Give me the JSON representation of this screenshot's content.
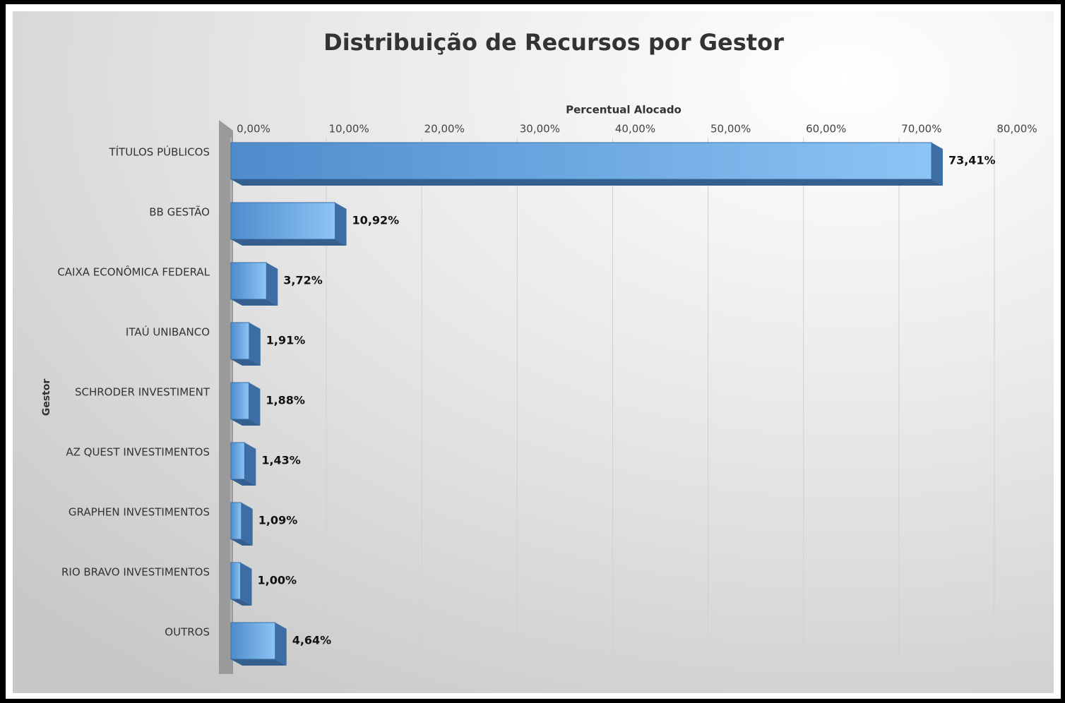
{
  "chart_data": {
    "type": "bar",
    "orientation": "horizontal",
    "title": "Distribuição de Recursos por Gestor",
    "x_label": "Percentual Alocado",
    "y_label": "Gestor",
    "categories": [
      "TÍTULOS PÚBLICOS",
      "BB GESTÃO",
      "CAIXA ECONÔMICA FEDERAL",
      "ITAÚ UNIBANCO",
      "SCHRODER INVESTIMENT",
      "AZ QUEST INVESTIMENTOS",
      "GRAPHEN INVESTIMENTOS",
      "RIO BRAVO INVESTIMENTOS",
      "OUTROS"
    ],
    "values": [
      73.41,
      10.92,
      3.72,
      1.91,
      1.88,
      1.43,
      1.09,
      1.0,
      4.64
    ],
    "value_labels": [
      "73,41%",
      "10,92%",
      "3,72%",
      "1,91%",
      "1,88%",
      "1,43%",
      "1,09%",
      "1,00%",
      "4,64%"
    ],
    "color": "#5b9bd5",
    "xlim": [
      0,
      80
    ],
    "xticks": [
      {
        "value": 0,
        "label": "0,00%"
      },
      {
        "value": 10,
        "label": "10,00%"
      },
      {
        "value": 20,
        "label": "20,00%"
      },
      {
        "value": 30,
        "label": "30,00%"
      },
      {
        "value": 40,
        "label": "40,00%"
      },
      {
        "value": 50,
        "label": "50,00%"
      },
      {
        "value": 60,
        "label": "60,00%"
      },
      {
        "value": 70,
        "label": "70,00%"
      },
      {
        "value": 80,
        "label": "80,00%"
      }
    ],
    "grid": true
  }
}
